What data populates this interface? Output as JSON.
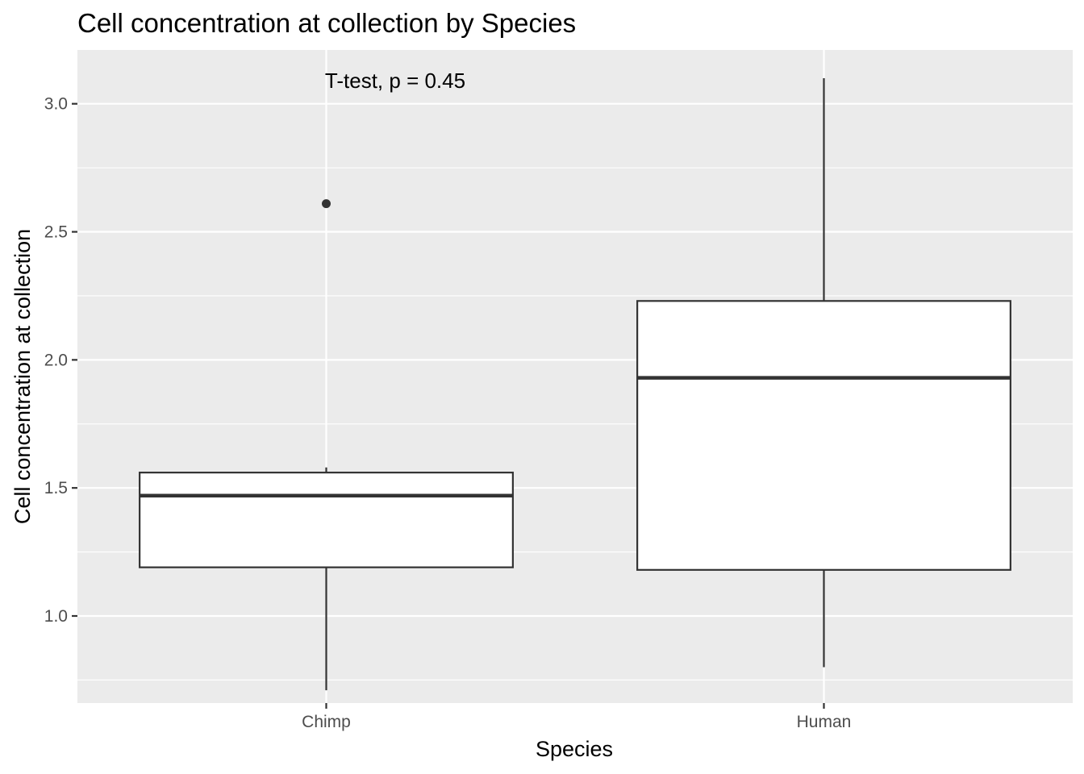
{
  "chart_data": {
    "type": "boxplot",
    "title": "Cell concentration at collection by Species",
    "xlabel": "Species",
    "ylabel": "Cell concentration at collection",
    "categories": [
      "Chimp",
      "Human"
    ],
    "ylim": [
      0.66,
      3.21
    ],
    "yticks": [
      1.0,
      1.5,
      2.0,
      2.5,
      3.0
    ],
    "ytick_labels": [
      "1.0",
      "1.5",
      "2.0",
      "2.5",
      "3.0"
    ],
    "grid": true,
    "boxes": [
      {
        "category": "Chimp",
        "whisker_low": 0.71,
        "q1": 1.19,
        "median": 1.47,
        "q3": 1.56,
        "whisker_high": 1.58,
        "outliers": [
          2.61
        ]
      },
      {
        "category": "Human",
        "whisker_low": 0.8,
        "q1": 1.18,
        "median": 1.93,
        "q3": 2.23,
        "whisker_high": 3.1,
        "outliers": []
      }
    ],
    "annotation": {
      "text": "T-test, p = 0.45"
    },
    "colors": {
      "panel_background": "#ebebeb",
      "grid": "#ffffff",
      "box_fill": "#ffffff",
      "box_line": "#333333",
      "tick_label": "#4d4d4d"
    }
  }
}
